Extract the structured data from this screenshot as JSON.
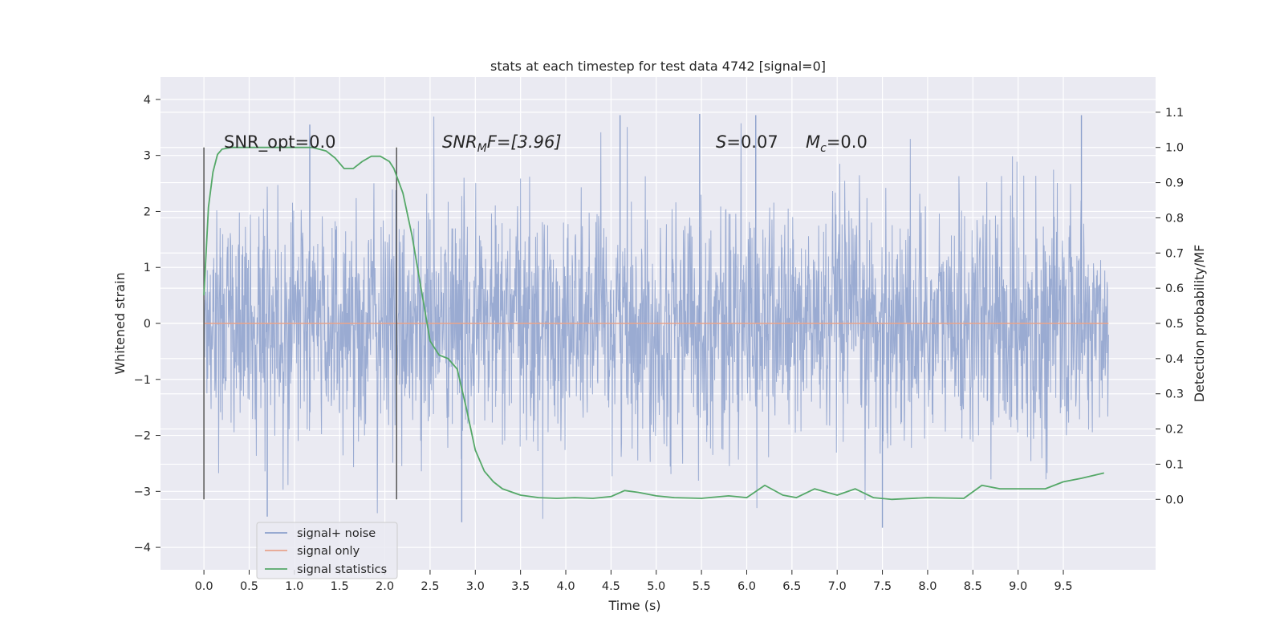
{
  "chart_data": {
    "type": "line",
    "title": "stats at each timestep for test data 4742 [signal=0]",
    "xlabel": "Time (s)",
    "ylabel": "Whitened strain",
    "ylabel_right": "Detection probability/MF",
    "xlim": [
      -0.48,
      10.52
    ],
    "ylim": [
      -4.4,
      4.4
    ],
    "ylim_right": [
      -0.2,
      1.2
    ],
    "x_ticks": [
      "0.0",
      "0.5",
      "1.0",
      "1.5",
      "2.0",
      "2.5",
      "3.0",
      "3.5",
      "4.0",
      "4.5",
      "5.0",
      "5.5",
      "6.0",
      "6.5",
      "7.0",
      "7.5",
      "8.0",
      "8.5",
      "9.0",
      "9.5"
    ],
    "y_ticks": [
      "4",
      "3",
      "2",
      "1",
      "0",
      "−1",
      "−2",
      "−3",
      "−4"
    ],
    "y_ticks_right": [
      "1.1",
      "1.0",
      "0.9",
      "0.8",
      "0.7",
      "0.6",
      "0.5",
      "0.4",
      "0.3",
      "0.2",
      "0.1",
      "0.0"
    ],
    "grid": true,
    "legend_position": "bottom-left",
    "vlines": [
      0.0,
      2.13
    ],
    "annotations": {
      "snr_opt": "SNR_opt=0.0",
      "snr_mf_base": "SNR",
      "snr_mf_sub": "M",
      "snr_mf_rest": "F=[3.96]",
      "s_italic": "S",
      "s_rest": "=0.07",
      "mc_italic": "M",
      "mc_sub": "c",
      "mc_rest": "=0.0"
    },
    "series": [
      {
        "name": "signal+ noise",
        "color": "#8ca0cc",
        "noise_envelope": {
          "x_range": [
            0.0,
            10.0
          ],
          "typical_band": [
            -2.0,
            2.0
          ],
          "peak_max": 4.02,
          "peak_min": -3.95
        }
      },
      {
        "name": "signal only",
        "color": "#e7a38c",
        "x": [
          0.0,
          10.0
        ],
        "y": [
          0.0,
          0.0
        ]
      },
      {
        "name": "signal statistics",
        "color": "#55a868",
        "axis": "right",
        "x": [
          0.0,
          0.05,
          0.1,
          0.15,
          0.2,
          0.3,
          0.5,
          0.8,
          1.0,
          1.2,
          1.35,
          1.45,
          1.55,
          1.65,
          1.75,
          1.85,
          1.95,
          2.05,
          2.1,
          2.2,
          2.3,
          2.4,
          2.5,
          2.6,
          2.7,
          2.8,
          2.9,
          3.0,
          3.1,
          3.2,
          3.3,
          3.5,
          3.7,
          3.9,
          4.1,
          4.3,
          4.5,
          4.65,
          4.8,
          5.0,
          5.2,
          5.5,
          5.8,
          6.0,
          6.2,
          6.4,
          6.55,
          6.75,
          7.0,
          7.2,
          7.4,
          7.6,
          8.0,
          8.4,
          8.6,
          8.8,
          9.0,
          9.3,
          9.5,
          9.7,
          9.95
        ],
        "y": [
          0.58,
          0.83,
          0.93,
          0.98,
          0.995,
          1.0,
          1.0,
          1.0,
          1.0,
          1.0,
          0.99,
          0.97,
          0.94,
          0.94,
          0.96,
          0.975,
          0.975,
          0.96,
          0.94,
          0.87,
          0.75,
          0.6,
          0.45,
          0.41,
          0.4,
          0.37,
          0.26,
          0.14,
          0.08,
          0.05,
          0.03,
          0.012,
          0.005,
          0.003,
          0.005,
          0.003,
          0.008,
          0.025,
          0.02,
          0.01,
          0.005,
          0.003,
          0.01,
          0.005,
          0.04,
          0.012,
          0.005,
          0.03,
          0.012,
          0.03,
          0.005,
          0.0,
          0.005,
          0.003,
          0.04,
          0.03,
          0.03,
          0.03,
          0.05,
          0.06,
          0.075
        ]
      }
    ],
    "legend": [
      {
        "label": "signal+ noise",
        "color": "#8ca0cc"
      },
      {
        "label": "signal only",
        "color": "#e7a38c"
      },
      {
        "label": "signal statistics",
        "color": "#55a868"
      }
    ]
  }
}
